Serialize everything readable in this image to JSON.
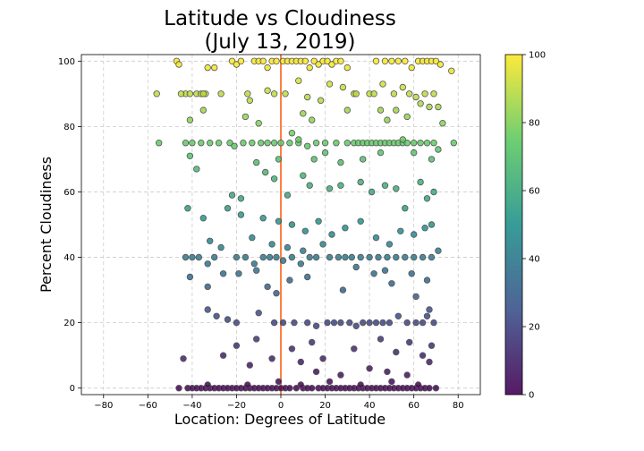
{
  "chart_data": {
    "type": "scatter",
    "title_line1": "Latitude vs Cloudiness",
    "title_line2": "(July 13, 2019)",
    "xlabel": "Location: Degrees of Latitude",
    "ylabel": "Percent Cloudiness",
    "xlim": [
      -90,
      90
    ],
    "ylim": [
      -2,
      102
    ],
    "xticks": [
      -80,
      -60,
      -40,
      -20,
      0,
      20,
      40,
      60,
      80
    ],
    "yticks": [
      0,
      20,
      40,
      60,
      80,
      100
    ],
    "grid": true,
    "colormap": "viridis",
    "colorbar": {
      "min": 0,
      "max": 100,
      "ticks": [
        0,
        20,
        40,
        60,
        80,
        100
      ]
    },
    "marker_edge_color": "#555555",
    "reference_line": {
      "x": 0,
      "color": "#ff7f3f"
    },
    "colors": {
      "viridis": [
        "#440154",
        "#3b528b",
        "#21918c",
        "#5ec962",
        "#fde725"
      ]
    },
    "points": [
      [
        -47,
        100
      ],
      [
        -46,
        99
      ],
      [
        -43,
        90
      ],
      [
        -41,
        90
      ],
      [
        -38,
        90
      ],
      [
        -36,
        90
      ],
      [
        -34,
        90
      ],
      [
        -33,
        98
      ],
      [
        -30,
        98
      ],
      [
        -27,
        90
      ],
      [
        -22,
        100
      ],
      [
        -20,
        99
      ],
      [
        -18,
        100
      ],
      [
        -15,
        90
      ],
      [
        -12,
        100
      ],
      [
        -10,
        100
      ],
      [
        -8,
        100
      ],
      [
        -6,
        98
      ],
      [
        -4,
        100
      ],
      [
        -3,
        90
      ],
      [
        -2,
        100
      ],
      [
        1,
        100
      ],
      [
        3,
        100
      ],
      [
        5,
        100
      ],
      [
        7,
        100
      ],
      [
        9,
        100
      ],
      [
        11,
        100
      ],
      [
        13,
        98
      ],
      [
        15,
        100
      ],
      [
        17,
        99
      ],
      [
        19,
        100
      ],
      [
        21,
        100
      ],
      [
        23,
        99
      ],
      [
        25,
        100
      ],
      [
        27,
        100
      ],
      [
        30,
        98
      ],
      [
        33,
        90
      ],
      [
        40,
        90
      ],
      [
        43,
        100
      ],
      [
        47,
        100
      ],
      [
        50,
        100
      ],
      [
        53,
        100
      ],
      [
        56,
        100
      ],
      [
        59,
        98
      ],
      [
        62,
        100
      ],
      [
        64,
        100
      ],
      [
        66,
        100
      ],
      [
        68,
        100
      ],
      [
        70,
        100
      ],
      [
        72,
        99
      ],
      [
        77,
        97
      ],
      [
        -56,
        90
      ],
      [
        -45,
        90
      ],
      [
        -35,
        90
      ],
      [
        -14,
        88
      ],
      [
        -6,
        91
      ],
      [
        2,
        90
      ],
      [
        8,
        94
      ],
      [
        12,
        89
      ],
      [
        18,
        88
      ],
      [
        22,
        93
      ],
      [
        28,
        92
      ],
      [
        34,
        90
      ],
      [
        42,
        90
      ],
      [
        46,
        93
      ],
      [
        51,
        90
      ],
      [
        55,
        92
      ],
      [
        58,
        90
      ],
      [
        61,
        89
      ],
      [
        65,
        90
      ],
      [
        69,
        90
      ],
      [
        -41,
        82
      ],
      [
        -35,
        85
      ],
      [
        -16,
        83
      ],
      [
        -10,
        81
      ],
      [
        5,
        78
      ],
      [
        10,
        84
      ],
      [
        14,
        82
      ],
      [
        30,
        85
      ],
      [
        45,
        85
      ],
      [
        48,
        82
      ],
      [
        52,
        85
      ],
      [
        57,
        83
      ],
      [
        63,
        87
      ],
      [
        67,
        86
      ],
      [
        71,
        86
      ],
      [
        73,
        81
      ],
      [
        -55,
        75
      ],
      [
        -43,
        75
      ],
      [
        -40,
        75
      ],
      [
        -36,
        75
      ],
      [
        -32,
        75
      ],
      [
        -28,
        75
      ],
      [
        -23,
        75
      ],
      [
        -21,
        74
      ],
      [
        -17,
        75
      ],
      [
        -13,
        75
      ],
      [
        -9,
        75
      ],
      [
        -6,
        75
      ],
      [
        -3,
        75
      ],
      [
        0,
        75
      ],
      [
        4,
        75
      ],
      [
        8,
        75
      ],
      [
        12,
        74
      ],
      [
        16,
        75
      ],
      [
        20,
        75
      ],
      [
        25,
        75
      ],
      [
        30,
        75
      ],
      [
        33,
        75
      ],
      [
        35,
        75
      ],
      [
        37,
        75
      ],
      [
        39,
        75
      ],
      [
        41,
        75
      ],
      [
        43,
        75
      ],
      [
        45,
        75
      ],
      [
        47,
        75
      ],
      [
        49,
        75
      ],
      [
        51,
        75
      ],
      [
        53,
        75
      ],
      [
        55,
        75
      ],
      [
        57,
        75
      ],
      [
        60,
        75
      ],
      [
        63,
        75
      ],
      [
        66,
        75
      ],
      [
        69,
        75
      ],
      [
        71,
        73
      ],
      [
        78,
        75
      ],
      [
        -41,
        71
      ],
      [
        -38,
        67
      ],
      [
        -11,
        69
      ],
      [
        -1,
        70
      ],
      [
        8,
        76
      ],
      [
        15,
        70
      ],
      [
        20,
        72
      ],
      [
        27,
        69
      ],
      [
        37,
        70
      ],
      [
        45,
        72
      ],
      [
        55,
        76
      ],
      [
        60,
        72
      ],
      [
        68,
        70
      ],
      [
        -22,
        59
      ],
      [
        -18,
        58
      ],
      [
        -7,
        66
      ],
      [
        -3,
        64
      ],
      [
        3,
        59
      ],
      [
        10,
        65
      ],
      [
        13,
        62
      ],
      [
        22,
        61
      ],
      [
        27,
        62
      ],
      [
        36,
        63
      ],
      [
        41,
        60
      ],
      [
        47,
        62
      ],
      [
        52,
        61
      ],
      [
        56,
        55
      ],
      [
        63,
        63
      ],
      [
        66,
        58
      ],
      [
        69,
        60
      ],
      [
        -42,
        55
      ],
      [
        -35,
        52
      ],
      [
        -24,
        55
      ],
      [
        -18,
        53
      ],
      [
        -8,
        52
      ],
      [
        -1,
        51
      ],
      [
        5,
        50
      ],
      [
        11,
        48
      ],
      [
        17,
        51
      ],
      [
        23,
        47
      ],
      [
        29,
        49
      ],
      [
        36,
        51
      ],
      [
        43,
        46
      ],
      [
        49,
        44
      ],
      [
        54,
        48
      ],
      [
        60,
        47
      ],
      [
        65,
        49
      ],
      [
        68,
        50
      ],
      [
        -43,
        40
      ],
      [
        -40,
        40
      ],
      [
        -37,
        40
      ],
      [
        -33,
        38
      ],
      [
        -30,
        40
      ],
      [
        -26,
        35
      ],
      [
        -20,
        40
      ],
      [
        -16,
        40
      ],
      [
        -12,
        38
      ],
      [
        -8,
        40
      ],
      [
        -5,
        40
      ],
      [
        -2,
        40
      ],
      [
        1,
        39
      ],
      [
        5,
        40
      ],
      [
        9,
        38
      ],
      [
        13,
        40
      ],
      [
        16,
        40
      ],
      [
        22,
        40
      ],
      [
        26,
        40
      ],
      [
        29,
        40
      ],
      [
        32,
        40
      ],
      [
        36,
        40
      ],
      [
        40,
        40
      ],
      [
        44,
        40
      ],
      [
        48,
        40
      ],
      [
        52,
        40
      ],
      [
        56,
        40
      ],
      [
        60,
        40
      ],
      [
        64,
        40
      ],
      [
        68,
        40
      ],
      [
        71,
        42
      ],
      [
        -32,
        45
      ],
      [
        -27,
        43
      ],
      [
        -13,
        46
      ],
      [
        -4,
        44
      ],
      [
        3,
        43
      ],
      [
        10,
        42
      ],
      [
        19,
        44
      ],
      [
        34,
        37
      ],
      [
        47,
        36
      ],
      [
        59,
        35
      ],
      [
        66,
        33
      ],
      [
        -41,
        34
      ],
      [
        -33,
        31
      ],
      [
        -19,
        35
      ],
      [
        -11,
        36
      ],
      [
        -6,
        31
      ],
      [
        -2,
        29
      ],
      [
        4,
        33
      ],
      [
        12,
        34
      ],
      [
        28,
        30
      ],
      [
        42,
        35
      ],
      [
        50,
        32
      ],
      [
        61,
        28
      ],
      [
        67,
        24
      ],
      [
        -33,
        24
      ],
      [
        -29,
        22
      ],
      [
        -24,
        21
      ],
      [
        -20,
        20
      ],
      [
        -10,
        23
      ],
      [
        -3,
        20
      ],
      [
        1,
        20
      ],
      [
        6,
        20
      ],
      [
        12,
        20
      ],
      [
        16,
        19
      ],
      [
        21,
        20
      ],
      [
        24,
        20
      ],
      [
        27,
        20
      ],
      [
        31,
        20
      ],
      [
        34,
        19
      ],
      [
        37,
        20
      ],
      [
        40,
        20
      ],
      [
        43,
        20
      ],
      [
        46,
        20
      ],
      [
        49,
        20
      ],
      [
        53,
        22
      ],
      [
        57,
        20
      ],
      [
        61,
        20
      ],
      [
        64,
        20
      ],
      [
        66,
        22
      ],
      [
        69,
        20
      ],
      [
        -20,
        13
      ],
      [
        -11,
        15
      ],
      [
        5,
        12
      ],
      [
        14,
        14
      ],
      [
        19,
        9
      ],
      [
        33,
        12
      ],
      [
        45,
        15
      ],
      [
        52,
        11
      ],
      [
        58,
        14
      ],
      [
        64,
        10
      ],
      [
        68,
        13
      ],
      [
        -44,
        9
      ],
      [
        -26,
        10
      ],
      [
        -14,
        7
      ],
      [
        -4,
        9
      ],
      [
        9,
        8
      ],
      [
        16,
        5
      ],
      [
        27,
        4
      ],
      [
        40,
        6
      ],
      [
        48,
        5
      ],
      [
        57,
        4
      ],
      [
        67,
        8
      ],
      [
        -46,
        0
      ],
      [
        -42,
        0
      ],
      [
        -40,
        0
      ],
      [
        -38,
        0
      ],
      [
        -36,
        0
      ],
      [
        -34,
        0
      ],
      [
        -32,
        0
      ],
      [
        -30,
        0
      ],
      [
        -28,
        0
      ],
      [
        -26,
        0
      ],
      [
        -24,
        0
      ],
      [
        -22,
        0
      ],
      [
        -20,
        0
      ],
      [
        -18,
        0
      ],
      [
        -16,
        0
      ],
      [
        -14,
        0
      ],
      [
        -12,
        0
      ],
      [
        -10,
        0
      ],
      [
        -8,
        0
      ],
      [
        -6,
        0
      ],
      [
        -4,
        0
      ],
      [
        -2,
        0
      ],
      [
        0,
        0
      ],
      [
        2,
        0
      ],
      [
        4,
        0
      ],
      [
        7,
        0
      ],
      [
        10,
        0
      ],
      [
        12,
        0
      ],
      [
        14,
        0
      ],
      [
        17,
        0
      ],
      [
        19,
        0
      ],
      [
        21,
        0
      ],
      [
        23,
        0
      ],
      [
        25,
        0
      ],
      [
        27,
        0
      ],
      [
        29,
        0
      ],
      [
        31,
        0
      ],
      [
        33,
        0
      ],
      [
        35,
        0
      ],
      [
        37,
        0
      ],
      [
        39,
        0
      ],
      [
        41,
        0
      ],
      [
        43,
        0
      ],
      [
        45,
        0
      ],
      [
        47,
        0
      ],
      [
        49,
        0
      ],
      [
        51,
        0
      ],
      [
        53,
        0
      ],
      [
        55,
        0
      ],
      [
        57,
        0
      ],
      [
        59,
        0
      ],
      [
        61,
        0
      ],
      [
        63,
        0
      ],
      [
        65,
        0
      ],
      [
        67,
        0
      ],
      [
        70,
        0
      ],
      [
        -33,
        1
      ],
      [
        -15,
        1
      ],
      [
        -1,
        2
      ],
      [
        9,
        1
      ],
      [
        22,
        2
      ],
      [
        36,
        1
      ],
      [
        50,
        2
      ],
      [
        62,
        1
      ]
    ]
  }
}
